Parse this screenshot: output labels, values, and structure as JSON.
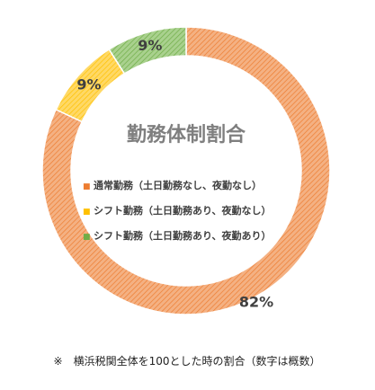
{
  "chart_data": {
    "type": "pie",
    "title": "勤務体制割合",
    "categories": [
      "通常勤務（土日勤務なし、夜勤なし）",
      "シフト勤務（土日勤務あり、夜勤なし）",
      "シフト勤務（土日勤務あり、夜勤あり）"
    ],
    "values": [
      82,
      9,
      9
    ],
    "value_labels": [
      "82%",
      "9%",
      "9%"
    ],
    "colors": [
      "#f4b183",
      "#ffd966",
      "#a9d18e"
    ],
    "hatch_colors": [
      "#ed7d31",
      "#ffc000",
      "#70ad47"
    ],
    "legend_marker": "■",
    "legend_position": "center"
  },
  "footnote": "※　横浜税関全体を100とした時の割合（数字は概数）"
}
